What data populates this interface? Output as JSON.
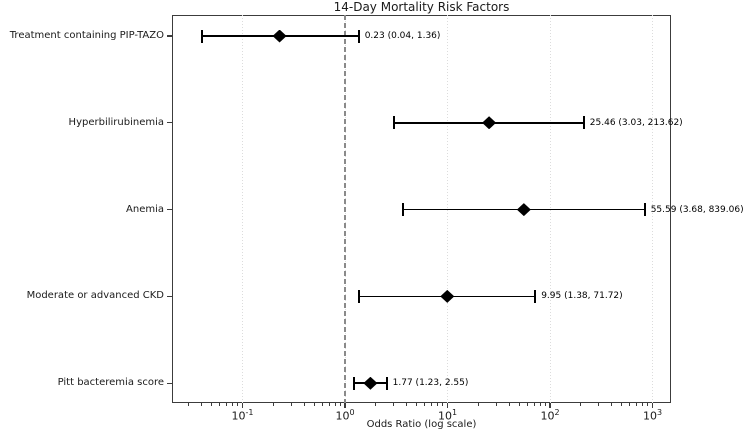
{
  "chart_data": {
    "type": "scatter",
    "variant": "forest-plot",
    "title": "14-Day Mortality Risk Factors",
    "xlabel": "Odds Ratio (log scale)",
    "x_scale": "log",
    "x_range": [
      0.0205,
      1520
    ],
    "grid": true,
    "legend": "none",
    "reference_line": {
      "value": 1,
      "style": "dashed",
      "color": "#8a8a8a"
    },
    "x_ticks": [
      {
        "value": 0.1,
        "label": "10^-1"
      },
      {
        "value": 1,
        "label": "10^0"
      },
      {
        "value": 10,
        "label": "10^1"
      },
      {
        "value": 100,
        "label": "10^2"
      },
      {
        "value": 1000,
        "label": "10^3"
      }
    ],
    "rows": [
      {
        "label": "Treatment containing PIP-TAZO",
        "odds_ratio": 0.23,
        "ci_lower": 0.04,
        "ci_upper": 1.36,
        "annotation": "0.23 (0.04, 1.36)"
      },
      {
        "label": "Hyperbilirubinemia",
        "odds_ratio": 25.46,
        "ci_lower": 3.03,
        "ci_upper": 213.62,
        "annotation": "25.46 (3.03, 213.62)"
      },
      {
        "label": "Anemia",
        "odds_ratio": 55.59,
        "ci_lower": 3.68,
        "ci_upper": 839.06,
        "annotation": "55.59 (3.68, 839.06)"
      },
      {
        "label": "Moderate or advanced CKD",
        "odds_ratio": 9.95,
        "ci_lower": 1.38,
        "ci_upper": 71.72,
        "annotation": "9.95 (1.38, 71.72)"
      },
      {
        "label": "Pitt bacteremia score",
        "odds_ratio": 1.77,
        "ci_lower": 1.23,
        "ci_upper": 2.55,
        "annotation": "1.77 (1.23, 2.55)"
      }
    ],
    "colors": {
      "marker": "#000000",
      "error_bar": "#000000",
      "reference_line": "#8a8a8a",
      "gridline": "#dcdcdc",
      "spine": "#3c3c3c"
    }
  }
}
